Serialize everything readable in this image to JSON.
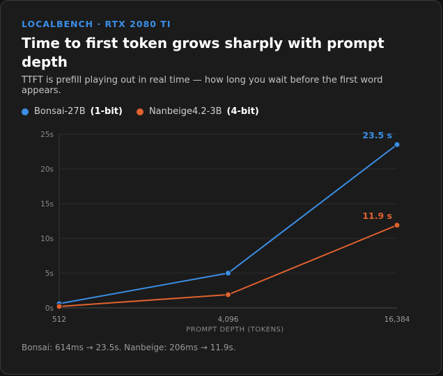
{
  "header": {
    "eyebrow": "LOCALBENCH · RTX 2080 TI",
    "title": "Time to first token grows sharply with prompt depth",
    "subtitle": "TTFT is prefill playing out in real time — how long you wait before the first word appears."
  },
  "legend": [
    {
      "name": "Bonsai-27B",
      "bits": "(1-bit)",
      "color": "#3b8ee6"
    },
    {
      "name": "Nanbeige4.2-3B",
      "bits": "(4-bit)",
      "color": "#e0622e"
    }
  ],
  "chart_data": {
    "type": "line",
    "x": [
      "512",
      "4,096",
      "16,384"
    ],
    "xlabel": "PROMPT DEPTH (TOKENS)",
    "ylabel": "",
    "ylim": [
      0,
      25
    ],
    "yticks": [
      0,
      5,
      10,
      15,
      20,
      25
    ],
    "ytick_labels": [
      "0s",
      "5s",
      "10s",
      "15s",
      "20s",
      "25s"
    ],
    "grid": true,
    "series": [
      {
        "name": "Bonsai-27B (1-bit)",
        "color": "#3b8ee6",
        "values": [
          0.614,
          5.0,
          23.5
        ],
        "end_label": "23.5 s"
      },
      {
        "name": "Nanbeige4.2-3B (4-bit)",
        "color": "#e0622e",
        "values": [
          0.206,
          1.9,
          11.9
        ],
        "end_label": "11.9 s"
      }
    ]
  },
  "footnote": "Bonsai: 614ms → 23.5s. Nanbeige: 206ms → 11.9s."
}
